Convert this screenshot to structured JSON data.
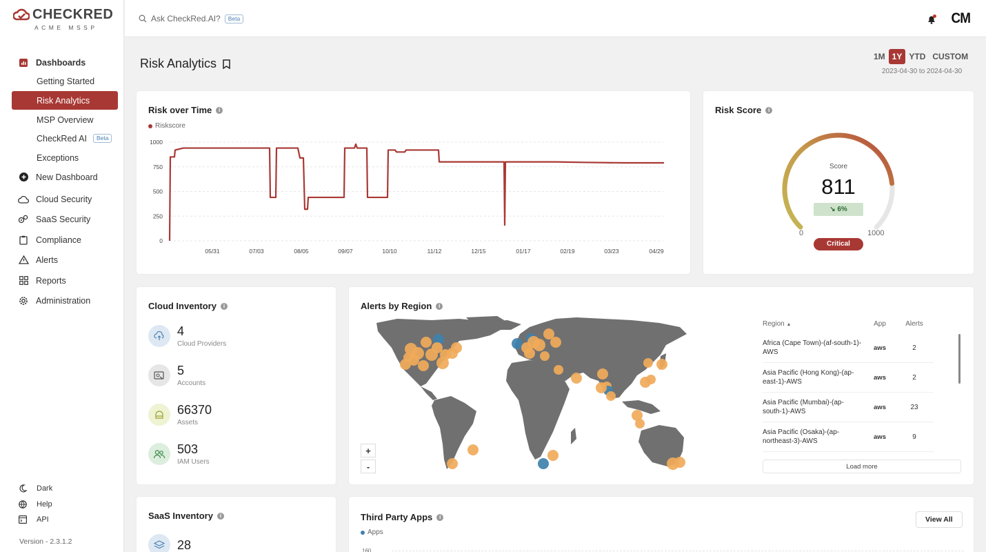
{
  "brand": {
    "name": "CHECKRED",
    "sub": "ACME MSSP"
  },
  "sidebar": {
    "dashboards": "Dashboards",
    "items": [
      {
        "label": "Getting Started"
      },
      {
        "label": "Risk Analytics",
        "active": true
      },
      {
        "label": "MSP Overview"
      },
      {
        "label": "CheckRed AI",
        "badge": "Beta"
      },
      {
        "label": "Exceptions"
      }
    ],
    "new_dashboard": "New Dashboard",
    "main": [
      {
        "label": "Cloud Security",
        "icon": "cloud-icon"
      },
      {
        "label": "SaaS Security",
        "icon": "cogs-icon"
      },
      {
        "label": "Compliance",
        "icon": "clipboard-icon"
      },
      {
        "label": "Alerts",
        "icon": "warning-icon"
      },
      {
        "label": "Reports",
        "icon": "grid-icon"
      },
      {
        "label": "Administration",
        "icon": "gear-icon"
      }
    ],
    "footer": [
      {
        "label": "Dark",
        "icon": "moon-icon"
      },
      {
        "label": "Help",
        "icon": "globe-icon"
      },
      {
        "label": "API",
        "icon": "code-icon"
      }
    ],
    "version": "Version - 2.3.1.2"
  },
  "topbar": {
    "search_placeholder": "Ask CheckRed.AI?",
    "search_badge": "Beta",
    "avatar": "CM"
  },
  "page": {
    "title": "Risk Analytics",
    "ranges": [
      "1M",
      "1Y",
      "YTD",
      "CUSTOM"
    ],
    "selected_range": "1Y",
    "dates": "2023-04-30 to 2024-04-30"
  },
  "risk_over_time": {
    "title": "Risk over Time"
  },
  "risk_score": {
    "title": "Risk Score",
    "label": "Score",
    "value": "811",
    "change": "↘ 6%",
    "min": "0",
    "max": "1000",
    "level": "Critical",
    "fraction": 0.811
  },
  "cloud_inventory": {
    "title": "Cloud Inventory",
    "items": [
      {
        "value": "4",
        "label": "Cloud Providers"
      },
      {
        "value": "5",
        "label": "Accounts"
      },
      {
        "value": "66370",
        "label": "Assets"
      },
      {
        "value": "503",
        "label": "IAM Users"
      }
    ]
  },
  "alerts_by_region": {
    "title": "Alerts by Region",
    "columns": [
      "Region",
      "App",
      "Alerts"
    ],
    "rows": [
      {
        "region": "Africa (Cape Town)-(af-south-1)-AWS",
        "app": "aws",
        "alerts": "2"
      },
      {
        "region": "Asia Pacific (Hong Kong)-(ap-east-1)-AWS",
        "app": "aws",
        "alerts": "2"
      },
      {
        "region": "Asia Pacific (Mumbai)-(ap-south-1)-AWS",
        "app": "aws",
        "alerts": "23"
      },
      {
        "region": "Asia Pacific (Osaka)-(ap-northeast-3)-AWS",
        "app": "aws",
        "alerts": "9"
      }
    ],
    "load_more": "Load more",
    "zoom_in": "+",
    "zoom_out": "-"
  },
  "saas_inventory": {
    "title": "SaaS Inventory",
    "first_value": "28"
  },
  "third_party_apps": {
    "title": "Third Party Apps",
    "legend": "Apps",
    "view_all": "View All",
    "y_top": "160"
  },
  "colors": {
    "accent": "#a83834",
    "orange": "#f0aa5a",
    "blue": "#3f81ad",
    "land": "#707070"
  },
  "chart_data": {
    "type": "line",
    "legend": "Riskscore",
    "series": [
      {
        "name": "Riskscore",
        "points": [
          [
            0,
            0
          ],
          [
            1,
            850
          ],
          [
            7,
            850
          ],
          [
            8,
            920
          ],
          [
            20,
            940
          ],
          [
            145,
            940
          ],
          [
            146,
            440
          ],
          [
            154,
            440
          ],
          [
            155,
            940
          ],
          [
            186,
            940
          ],
          [
            189,
            840
          ],
          [
            194,
            840
          ],
          [
            196,
            320
          ],
          [
            200,
            320
          ],
          [
            201,
            440
          ],
          [
            253,
            440
          ],
          [
            254,
            940
          ],
          [
            268,
            940
          ],
          [
            270,
            980
          ],
          [
            272,
            940
          ],
          [
            286,
            940
          ],
          [
            287,
            440
          ],
          [
            316,
            440
          ],
          [
            317,
            920
          ],
          [
            327,
            920
          ],
          [
            329,
            900
          ],
          [
            341,
            900
          ],
          [
            343,
            920
          ],
          [
            390,
            920
          ],
          [
            391,
            800
          ],
          [
            485,
            800
          ],
          [
            486,
            160
          ],
          [
            487,
            800
          ],
          [
            560,
            800
          ],
          [
            600,
            795
          ],
          [
            660,
            790
          ],
          [
            700,
            790
          ],
          [
            717,
            790
          ]
        ]
      }
    ],
    "x_ticks": [
      "05/31",
      "07/03",
      "08/05",
      "09/07",
      "10/10",
      "11/12",
      "12/15",
      "01/17",
      "02/19",
      "03/23",
      "04/29"
    ],
    "x_tick_pos": [
      62,
      126,
      191,
      255,
      319,
      384,
      448,
      513,
      577,
      641,
      706
    ],
    "y_ticks": [
      0,
      250,
      500,
      750,
      1000
    ],
    "ylim": [
      0,
      1000
    ],
    "grid": true
  }
}
